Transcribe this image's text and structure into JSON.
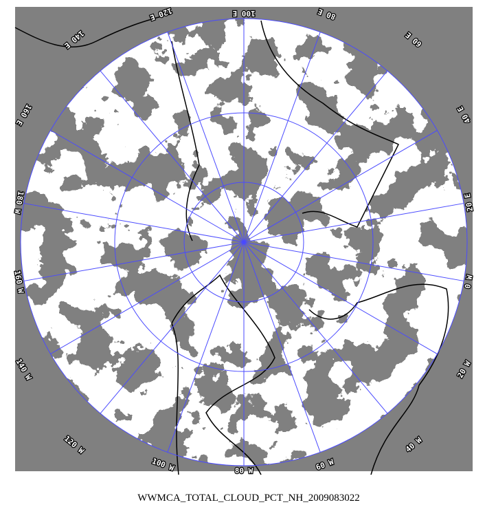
{
  "map": {
    "longitude_labels": [
      "80 W",
      "60 W",
      "40 W",
      "20 W",
      "0 W",
      "20 E",
      "40 E",
      "60 E",
      "80 E",
      "100 E",
      "120 E",
      "140 E",
      "160 E",
      "180 W",
      "160 W",
      "140 W",
      "120 W",
      "100 W"
    ]
  },
  "caption": "WWMCA_TOTAL_CLOUD_PCT_NH_2009083022"
}
